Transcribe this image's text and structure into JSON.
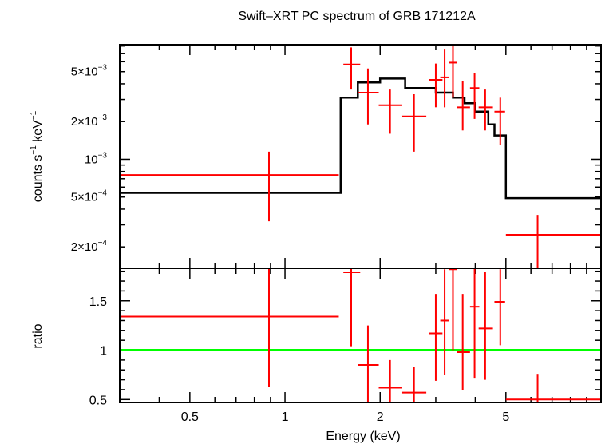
{
  "title": "Swift–XRT PC spectrum of GRB 171212A",
  "colors": {
    "data": "#ff0000",
    "model": "#000000",
    "unity": "#00ff00",
    "frame": "#000000"
  },
  "chart_data": [
    {
      "type": "scatter",
      "panel": "spectrum",
      "title": "Swift–XRT PC spectrum of GRB 171212A",
      "ylabel_parts": {
        "a": "counts s",
        "a_sup": "−1",
        "b": " keV",
        "b_sup": "−1"
      },
      "xscale": "log",
      "yscale": "log",
      "xlim": [
        0.3,
        10
      ],
      "ylim": [
        0.000135,
        0.0082
      ],
      "yticks": [
        {
          "value": 0.005,
          "mant": "5×10",
          "exp": "−3"
        },
        {
          "value": 0.002,
          "mant": "2×10",
          "exp": "−3"
        },
        {
          "value": 0.001,
          "mant": "10",
          "exp": "−3"
        },
        {
          "value": 0.0005,
          "mant": "5×10",
          "exp": "−4"
        },
        {
          "value": 0.0002,
          "mant": "2×10",
          "exp": "−4"
        }
      ],
      "data_series": {
        "name": "data",
        "points": [
          {
            "x": 0.89,
            "xlo": 0.3,
            "xhi": 1.48,
            "y": 0.00075,
            "ylo": 0.00032,
            "yhi": 0.00115
          },
          {
            "x": 1.62,
            "xlo": 1.53,
            "xhi": 1.73,
            "y": 0.0057,
            "ylo": 0.0036,
            "yhi": 0.0078
          },
          {
            "x": 1.83,
            "xlo": 1.7,
            "xhi": 1.98,
            "y": 0.0034,
            "ylo": 0.0019,
            "yhi": 0.0053
          },
          {
            "x": 2.15,
            "xlo": 1.98,
            "xhi": 2.35,
            "y": 0.0027,
            "ylo": 0.0016,
            "yhi": 0.0036
          },
          {
            "x": 2.56,
            "xlo": 2.35,
            "xhi": 2.8,
            "y": 0.0022,
            "ylo": 0.00115,
            "yhi": 0.0033
          },
          {
            "x": 3.0,
            "xlo": 2.85,
            "xhi": 3.15,
            "y": 0.0043,
            "ylo": 0.0026,
            "yhi": 0.0058
          },
          {
            "x": 3.2,
            "xlo": 3.1,
            "xhi": 3.3,
            "y": 0.0045,
            "ylo": 0.0026,
            "yhi": 0.0076
          },
          {
            "x": 3.4,
            "xlo": 3.3,
            "xhi": 3.5,
            "y": 0.0059,
            "ylo": 0.0031,
            "yhi": 0.0084
          },
          {
            "x": 3.65,
            "xlo": 3.5,
            "xhi": 3.85,
            "y": 0.0026,
            "ylo": 0.0017,
            "yhi": 0.0042
          },
          {
            "x": 3.98,
            "xlo": 3.85,
            "xhi": 4.12,
            "y": 0.0037,
            "ylo": 0.0021,
            "yhi": 0.0049
          },
          {
            "x": 4.3,
            "xlo": 4.1,
            "xhi": 4.55,
            "y": 0.0026,
            "ylo": 0.0017,
            "yhi": 0.0036
          },
          {
            "x": 4.8,
            "xlo": 4.6,
            "xhi": 4.97,
            "y": 0.0024,
            "ylo": 0.0013,
            "yhi": 0.0031
          },
          {
            "x": 6.3,
            "xlo": 5.0,
            "xhi": 10,
            "y": 0.00025,
            "ylo": 0.000135,
            "yhi": 0.00036
          }
        ]
      },
      "model_steps": [
        {
          "xlo": 0.3,
          "xhi": 1.5,
          "y": 0.00054
        },
        {
          "xlo": 1.5,
          "xhi": 1.7,
          "y": 0.0031
        },
        {
          "xlo": 1.7,
          "xhi": 2.0,
          "y": 0.0041
        },
        {
          "xlo": 2.0,
          "xhi": 2.4,
          "y": 0.0044
        },
        {
          "xlo": 2.4,
          "xhi": 3.0,
          "y": 0.0037
        },
        {
          "xlo": 3.0,
          "xhi": 3.4,
          "y": 0.0034
        },
        {
          "xlo": 3.4,
          "xhi": 3.7,
          "y": 0.0031
        },
        {
          "xlo": 3.7,
          "xhi": 4.0,
          "y": 0.0028
        },
        {
          "xlo": 4.0,
          "xhi": 4.4,
          "y": 0.0024
        },
        {
          "xlo": 4.4,
          "xhi": 4.6,
          "y": 0.0019
        },
        {
          "xlo": 4.6,
          "xhi": 5.0,
          "y": 0.00155
        },
        {
          "xlo": 5.0,
          "xhi": 10,
          "y": 0.00049
        }
      ]
    },
    {
      "type": "scatter",
      "panel": "ratio",
      "xlabel": "Energy (keV)",
      "ylabel": "ratio",
      "xscale": "log",
      "yscale": "linear",
      "xlim": [
        0.3,
        10
      ],
      "ylim": [
        0.47,
        1.83
      ],
      "xticks": [
        {
          "value": 0.5,
          "label": "0.5"
        },
        {
          "value": 1,
          "label": "1"
        },
        {
          "value": 2,
          "label": "2"
        },
        {
          "value": 5,
          "label": "5"
        }
      ],
      "yticks": [
        {
          "value": 1.5,
          "label": "1.5"
        },
        {
          "value": 1,
          "label": "1"
        },
        {
          "value": 0.5,
          "label": "0.5"
        }
      ],
      "reference_line": 1,
      "data_series": {
        "name": "ratio",
        "points": [
          {
            "x": 0.89,
            "xlo": 0.3,
            "xhi": 1.48,
            "y": 1.34,
            "ylo": 0.63,
            "yhi": 1.85
          },
          {
            "x": 1.62,
            "xlo": 1.53,
            "xhi": 1.73,
            "y": 1.79,
            "ylo": 1.04,
            "yhi": 1.85
          },
          {
            "x": 1.83,
            "xlo": 1.7,
            "xhi": 1.98,
            "y": 0.85,
            "ylo": 0.45,
            "yhi": 1.25
          },
          {
            "x": 2.15,
            "xlo": 1.98,
            "xhi": 2.35,
            "y": 0.62,
            "ylo": 0.45,
            "yhi": 0.9
          },
          {
            "x": 2.56,
            "xlo": 2.35,
            "xhi": 2.8,
            "y": 0.57,
            "ylo": 0.45,
            "yhi": 0.83
          },
          {
            "x": 3.0,
            "xlo": 2.85,
            "xhi": 3.15,
            "y": 1.17,
            "ylo": 0.69,
            "yhi": 1.57
          },
          {
            "x": 3.2,
            "xlo": 3.1,
            "xhi": 3.3,
            "y": 1.3,
            "ylo": 0.75,
            "yhi": 1.82
          },
          {
            "x": 3.4,
            "xlo": 3.3,
            "xhi": 3.5,
            "y": 1.82,
            "ylo": 1.0,
            "yhi": 1.85
          },
          {
            "x": 3.65,
            "xlo": 3.5,
            "xhi": 3.85,
            "y": 0.98,
            "ylo": 0.6,
            "yhi": 1.57
          },
          {
            "x": 3.98,
            "xlo": 3.85,
            "xhi": 4.12,
            "y": 1.44,
            "ylo": 0.72,
            "yhi": 1.85
          },
          {
            "x": 4.3,
            "xlo": 4.1,
            "xhi": 4.55,
            "y": 1.22,
            "ylo": 0.7,
            "yhi": 1.79
          },
          {
            "x": 4.8,
            "xlo": 4.6,
            "xhi": 4.97,
            "y": 1.49,
            "ylo": 1.05,
            "yhi": 1.82
          },
          {
            "x": 6.3,
            "xlo": 5.0,
            "xhi": 10,
            "y": 0.5,
            "ylo": 0.45,
            "yhi": 0.76
          }
        ]
      }
    }
  ]
}
